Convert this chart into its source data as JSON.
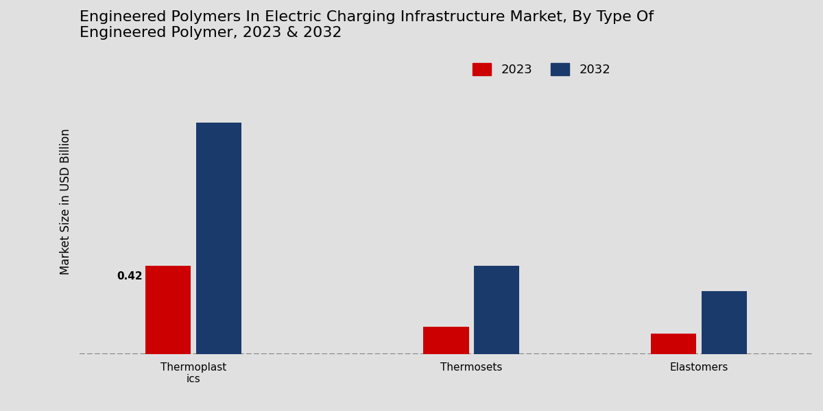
{
  "title": "Engineered Polymers In Electric Charging Infrastructure Market, By Type Of\nEngineered Polymer, 2023 & 2032",
  "ylabel": "Market Size in USD Billion",
  "categories": [
    "Thermoplast\nics",
    "Thermosets",
    "Elastomers"
  ],
  "values_2023": [
    0.42,
    0.13,
    0.1
  ],
  "values_2032": [
    1.1,
    0.42,
    0.3
  ],
  "color_2023": "#cc0000",
  "color_2032": "#1a3a6b",
  "bar_width": 0.18,
  "annotation_2023_thermoplastics": "0.42",
  "background_color": "#e0e0e0",
  "legend_labels": [
    "2023",
    "2032"
  ],
  "title_fontsize": 16,
  "axis_label_fontsize": 12,
  "tick_fontsize": 11,
  "legend_fontsize": 13,
  "ylim": [
    0,
    1.45
  ]
}
